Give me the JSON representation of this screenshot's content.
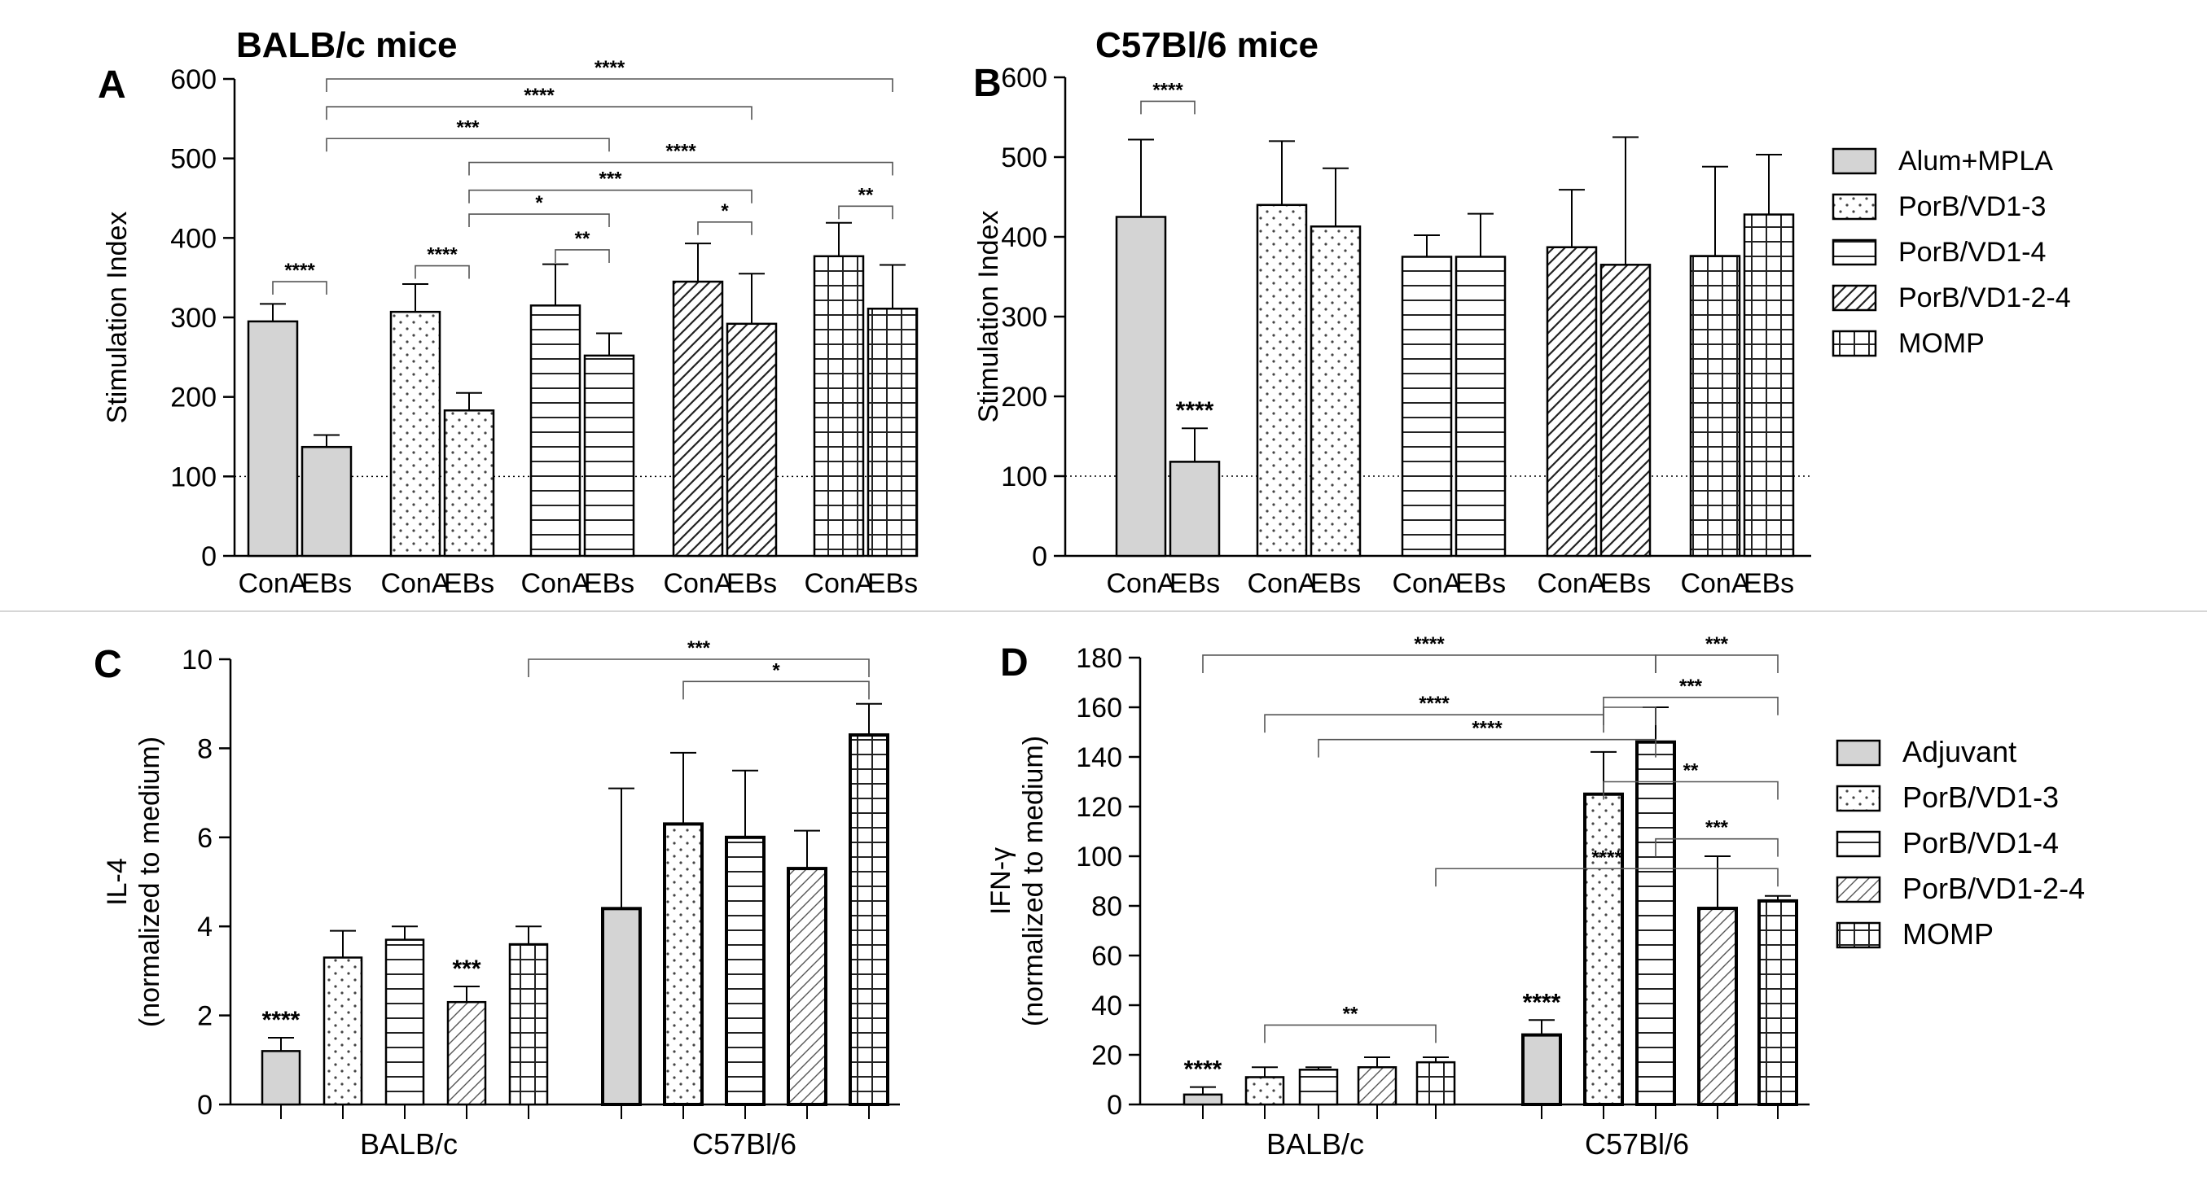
{
  "chart_data": [
    {
      "id": "A",
      "type": "bar",
      "panel_letter": "A",
      "title": "BALB/c mice",
      "ylabel": "Stimulation Index",
      "xlabel": "",
      "ylim": [
        0,
        600
      ],
      "yticks": [
        0,
        100,
        200,
        300,
        400,
        500,
        600
      ],
      "reference_line": 100,
      "groups": [
        {
          "series": "Alum+MPLA",
          "bars": [
            {
              "label": "ConA",
              "value": 295,
              "err": 22
            },
            {
              "label": "EBs",
              "value": 137,
              "err": 15,
              "sig": ""
            }
          ]
        },
        {
          "series": "PorB/VD1-3",
          "bars": [
            {
              "label": "ConA",
              "value": 307,
              "err": 35
            },
            {
              "label": "EBs",
              "value": 183,
              "err": 22,
              "sig": ""
            }
          ]
        },
        {
          "series": "PorB/VD1-4",
          "bars": [
            {
              "label": "ConA",
              "value": 315,
              "err": 52
            },
            {
              "label": "EBs",
              "value": 252,
              "err": 28,
              "sig": ""
            }
          ]
        },
        {
          "series": "PorB/VD1-2-4",
          "bars": [
            {
              "label": "ConA",
              "value": 345,
              "err": 48
            },
            {
              "label": "EBs",
              "value": 292,
              "err": 63,
              "sig": ""
            }
          ]
        },
        {
          "series": "MOMP",
          "bars": [
            {
              "label": "ConA",
              "value": 377,
              "err": 42
            },
            {
              "label": "EBs",
              "value": 311,
              "err": 55,
              "sig": ""
            }
          ]
        }
      ],
      "brackets": [
        {
          "from": [
            0,
            1
          ],
          "to": [
            4,
            1
          ],
          "y": 600,
          "label": "****"
        },
        {
          "from": [
            0,
            1
          ],
          "to": [
            3,
            1
          ],
          "y": 565,
          "label": "****"
        },
        {
          "from": [
            0,
            1
          ],
          "to": [
            2,
            1
          ],
          "y": 525,
          "label": "***"
        },
        {
          "from": [
            1,
            1
          ],
          "to": [
            4,
            1
          ],
          "y": 495,
          "label": "****"
        },
        {
          "from": [
            1,
            1
          ],
          "to": [
            3,
            1
          ],
          "y": 460,
          "label": "***"
        },
        {
          "from": [
            1,
            1
          ],
          "to": [
            2,
            1
          ],
          "y": 430,
          "label": "*"
        },
        {
          "from": [
            0,
            0
          ],
          "to": [
            0,
            1
          ],
          "y": 345,
          "label": "****"
        },
        {
          "from": [
            1,
            0
          ],
          "to": [
            1,
            1
          ],
          "y": 365,
          "label": "****"
        },
        {
          "from": [
            2,
            0
          ],
          "to": [
            2,
            1
          ],
          "y": 385,
          "label": "**"
        },
        {
          "from": [
            3,
            0
          ],
          "to": [
            3,
            1
          ],
          "y": 420,
          "label": "*"
        },
        {
          "from": [
            4,
            0
          ],
          "to": [
            4,
            1
          ],
          "y": 440,
          "label": "**"
        }
      ]
    },
    {
      "id": "B",
      "type": "bar",
      "panel_letter": "B",
      "title": "C57Bl/6 mice",
      "ylabel": "Stimulation Index",
      "xlabel": "",
      "ylim": [
        0,
        600
      ],
      "yticks": [
        0,
        100,
        200,
        300,
        400,
        500,
        600
      ],
      "reference_line": 100,
      "groups": [
        {
          "series": "Alum+MPLA",
          "bars": [
            {
              "label": "ConA",
              "value": 425,
              "err": 97
            },
            {
              "label": "EBs",
              "value": 118,
              "err": 42,
              "sig": "****"
            }
          ]
        },
        {
          "series": "PorB/VD1-3",
          "bars": [
            {
              "label": "ConA",
              "value": 440,
              "err": 80
            },
            {
              "label": "EBs",
              "value": 413,
              "err": 73,
              "sig": ""
            }
          ]
        },
        {
          "series": "PorB/VD1-4",
          "bars": [
            {
              "label": "ConA",
              "value": 375,
              "err": 27
            },
            {
              "label": "EBs",
              "value": 375,
              "err": 54,
              "sig": ""
            }
          ]
        },
        {
          "series": "PorB/VD1-2-4",
          "bars": [
            {
              "label": "ConA",
              "value": 387,
              "err": 72
            },
            {
              "label": "EBs",
              "value": 365,
              "err": 160,
              "sig": ""
            }
          ]
        },
        {
          "series": "MOMP",
          "bars": [
            {
              "label": "ConA",
              "value": 376,
              "err": 112
            },
            {
              "label": "EBs",
              "value": 428,
              "err": 75,
              "sig": ""
            }
          ]
        }
      ],
      "brackets": [
        {
          "from": [
            0,
            0
          ],
          "to": [
            0,
            1
          ],
          "y": 570,
          "label": "****"
        }
      ],
      "legend": {
        "placement": "right",
        "entries": [
          "Alum+MPLA",
          "PorB/VD1-3",
          "PorB/VD1-4",
          "PorB/VD1-2-4",
          "MOMP"
        ]
      }
    },
    {
      "id": "C",
      "type": "bar",
      "panel_letter": "C",
      "title": "",
      "ylabel": "IL-4",
      "ylabel2": "(normalized to medium)",
      "xlabel": "",
      "categories": [
        "BALB/c",
        "C57Bl/6"
      ],
      "ylim": [
        0,
        10
      ],
      "yticks": [
        0,
        2,
        4,
        6,
        8,
        10
      ],
      "series_order": [
        "Adjuvant",
        "PorB/VD1-3",
        "PorB/VD1-4",
        "PorB/VD1-2-4",
        "MOMP"
      ],
      "series": [
        {
          "name": "Adjuvant",
          "values": [
            1.2,
            4.4
          ],
          "err": [
            0.3,
            2.7
          ],
          "sig": [
            "****",
            ""
          ]
        },
        {
          "name": "PorB/VD1-3",
          "values": [
            3.3,
            6.3
          ],
          "err": [
            0.6,
            1.6
          ],
          "sig": [
            "",
            ""
          ]
        },
        {
          "name": "PorB/VD1-4",
          "values": [
            3.7,
            6.0
          ],
          "err": [
            0.3,
            1.5
          ],
          "sig": [
            "",
            ""
          ]
        },
        {
          "name": "PorB/VD1-2-4",
          "values": [
            2.3,
            5.3
          ],
          "err": [
            0.35,
            0.85
          ],
          "sig": [
            "***",
            ""
          ]
        },
        {
          "name": "MOMP",
          "values": [
            3.6,
            8.3
          ],
          "err": [
            0.4,
            0.7
          ],
          "sig": [
            "",
            ""
          ]
        }
      ],
      "brackets": [
        {
          "from": [
            0,
            4
          ],
          "to": [
            1,
            4
          ],
          "y": 10.0,
          "label": "***"
        },
        {
          "from": [
            1,
            1
          ],
          "to": [
            1,
            4
          ],
          "y": 9.5,
          "label": "*"
        }
      ]
    },
    {
      "id": "D",
      "type": "bar",
      "panel_letter": "D",
      "title": "",
      "ylabel": "IFN-γ",
      "ylabel2": "(normalized to medium)",
      "xlabel": "",
      "categories": [
        "BALB/c",
        "C57Bl/6"
      ],
      "ylim": [
        0,
        180
      ],
      "yticks": [
        0,
        20,
        40,
        60,
        80,
        100,
        120,
        140,
        160,
        180
      ],
      "series_order": [
        "Adjuvant",
        "PorB/VD1-3",
        "PorB/VD1-4",
        "PorB/VD1-2-4",
        "MOMP"
      ],
      "series": [
        {
          "name": "Adjuvant",
          "values": [
            4,
            28
          ],
          "err": [
            3,
            6
          ],
          "sig": [
            "****",
            "****"
          ]
        },
        {
          "name": "PorB/VD1-3",
          "values": [
            11,
            125
          ],
          "err": [
            4,
            17
          ],
          "sig": [
            "",
            ""
          ]
        },
        {
          "name": "PorB/VD1-4",
          "values": [
            14,
            146
          ],
          "err": [
            1,
            14
          ],
          "sig": [
            "",
            ""
          ]
        },
        {
          "name": "PorB/VD1-2-4",
          "values": [
            15,
            79
          ],
          "err": [
            4,
            21
          ],
          "sig": [
            "",
            ""
          ]
        },
        {
          "name": "MOMP",
          "values": [
            17,
            82
          ],
          "err": [
            2,
            2
          ],
          "sig": [
            "",
            ""
          ]
        }
      ],
      "brackets": [
        {
          "from": [
            0,
            0
          ],
          "to": [
            1,
            2
          ],
          "y": 181,
          "label": "****"
        },
        {
          "from": [
            1,
            2
          ],
          "to": [
            1,
            4
          ],
          "y": 181,
          "label": "***"
        },
        {
          "from": [
            1,
            1
          ],
          "to": [
            1,
            4
          ],
          "y": 164,
          "label": "***"
        },
        {
          "from": [
            0,
            1
          ],
          "to": [
            1,
            1
          ],
          "y": 157,
          "label": "****"
        },
        {
          "from": [
            1,
            1
          ],
          "to": [
            1,
            2
          ],
          "y": 160,
          "label": ""
        },
        {
          "from": [
            0,
            2
          ],
          "to": [
            1,
            2
          ],
          "y": 147,
          "label": "****"
        },
        {
          "from": [
            1,
            1
          ],
          "to": [
            1,
            4
          ],
          "y": 130,
          "label": "**"
        },
        {
          "from": [
            1,
            2
          ],
          "to": [
            1,
            4
          ],
          "y": 107,
          "label": "***"
        },
        {
          "from": [
            0,
            4
          ],
          "to": [
            1,
            4
          ],
          "y": 95,
          "label": "****"
        },
        {
          "from": [
            0,
            1
          ],
          "to": [
            0,
            4
          ],
          "y": 32,
          "label": "**"
        }
      ],
      "legend": {
        "placement": "right",
        "entries": [
          "Adjuvant",
          "PorB/VD1-3",
          "PorB/VD1-4",
          "PorB/VD1-2-4",
          "MOMP"
        ]
      }
    }
  ]
}
